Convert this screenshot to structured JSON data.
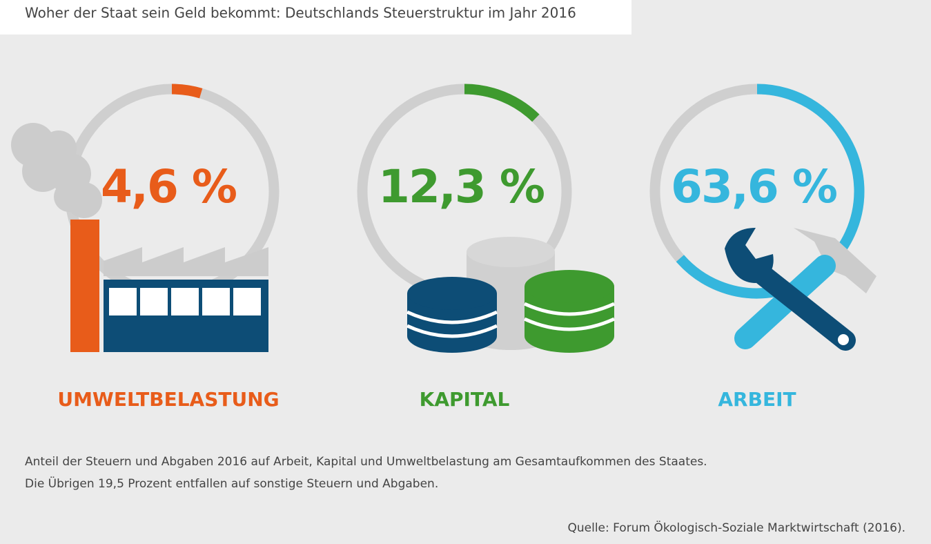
{
  "chart_data": {
    "type": "gauge",
    "title": "Woher der Staat sein Geld bekommt: Deutschlands Steuerstruktur im Jahr 2016",
    "categories": [
      "UMWELTBELASTUNG",
      "KAPITAL",
      "ARBEIT"
    ],
    "values": [
      4.6,
      12.3,
      63.6
    ],
    "value_labels": [
      "4,6 %",
      "12,3 %",
      "63,6 %"
    ],
    "colors": [
      "#e85c1a",
      "#3e9a2f",
      "#35b6dd"
    ],
    "track_color": "#cfcfcf",
    "ylim": [
      0,
      100
    ],
    "notes": [
      "Anteil der Steuern und Abgaben 2016 auf Arbeit, Kapital und Umweltbelastung am Gesamtaufkommen des Staates.",
      "Die Übrigen 19,5 Prozent entfallen auf sonstige Steuern und Abgaben."
    ],
    "source": "Quelle: Forum Ökologisch-Soziale Marktwirtschaft (2016)."
  }
}
